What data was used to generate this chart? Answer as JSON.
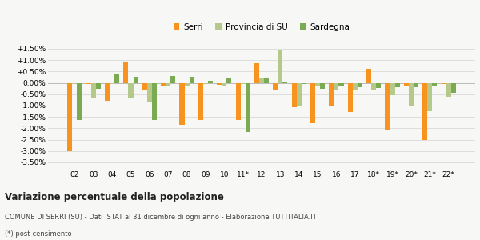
{
  "categories": [
    "02",
    "03",
    "04",
    "05",
    "06",
    "07",
    "08",
    "09",
    "10",
    "11*",
    "12",
    "13",
    "14",
    "15",
    "16",
    "17",
    "18*",
    "19*",
    "20*",
    "21*",
    "22*"
  ],
  "serri": [
    -3.02,
    -0.05,
    -0.78,
    0.95,
    -0.3,
    -0.12,
    -1.85,
    -1.65,
    -0.08,
    -1.65,
    0.85,
    -0.32,
    -1.08,
    -1.78,
    -1.05,
    -1.28,
    0.6,
    -2.05,
    -0.12,
    -2.5,
    -0.05
  ],
  "provincia": [
    -0.05,
    -0.65,
    -0.05,
    -0.65,
    -0.87,
    -0.12,
    -0.12,
    -0.05,
    -0.12,
    -0.05,
    0.18,
    1.45,
    -1.05,
    -0.12,
    -0.32,
    -0.35,
    -0.32,
    -0.55,
    -1.0,
    -1.25,
    -0.6
  ],
  "sardegna": [
    -1.65,
    -0.28,
    0.38,
    0.28,
    -1.65,
    0.3,
    0.28,
    0.1,
    0.2,
    -2.15,
    0.2,
    0.05,
    -0.05,
    -0.28,
    -0.12,
    -0.18,
    -0.22,
    -0.18,
    -0.2,
    -0.12,
    -0.45
  ],
  "color_serri": "#f7931e",
  "color_provincia": "#b5c98a",
  "color_sardegna": "#7aab52",
  "background": "#f7f7f5",
  "grid_color": "#dddddd",
  "title": "Variazione percentuale della popolazione",
  "subtitle": "COMUNE DI SERRI (SU) - Dati ISTAT al 31 dicembre di ogni anno - Elaborazione TUTTITALIA.IT",
  "footnote": "(*) post-censimento",
  "ylim": [
    -3.75,
    1.85
  ],
  "yticks": [
    -3.5,
    -3.0,
    -2.5,
    -2.0,
    -1.5,
    -1.0,
    -0.5,
    0.0,
    0.5,
    1.0,
    1.5
  ],
  "bar_width": 0.26
}
